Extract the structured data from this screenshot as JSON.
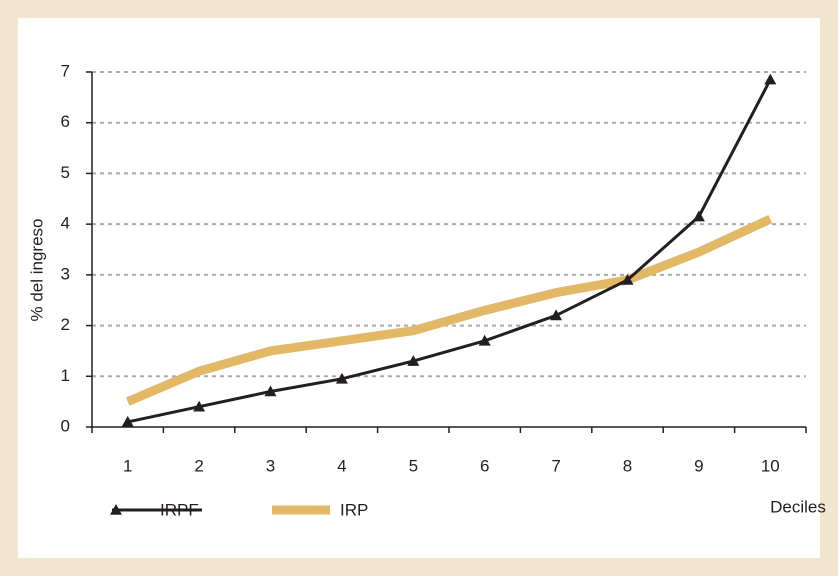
{
  "chart_data": {
    "type": "line",
    "y_label": "% del ingreso",
    "x_label": "Deciles",
    "categories": [
      "1",
      "2",
      "3",
      "4",
      "5",
      "6",
      "7",
      "8",
      "9",
      "10"
    ],
    "series": [
      {
        "name": "IRPF",
        "color": "#231f20",
        "marker": "triangle",
        "values": [
          0.1,
          0.4,
          0.7,
          0.95,
          1.3,
          1.7,
          2.2,
          2.9,
          4.15,
          6.85
        ]
      },
      {
        "name": "IRP",
        "color": "#e2b867",
        "values": [
          0.5,
          1.1,
          1.5,
          1.7,
          1.9,
          2.3,
          2.65,
          2.9,
          3.45,
          4.1
        ]
      }
    ],
    "ylim": [
      0,
      7
    ],
    "yticks": [
      0,
      1,
      2,
      3,
      4,
      5,
      6,
      7
    ],
    "grid": true,
    "legend": "bottom"
  }
}
